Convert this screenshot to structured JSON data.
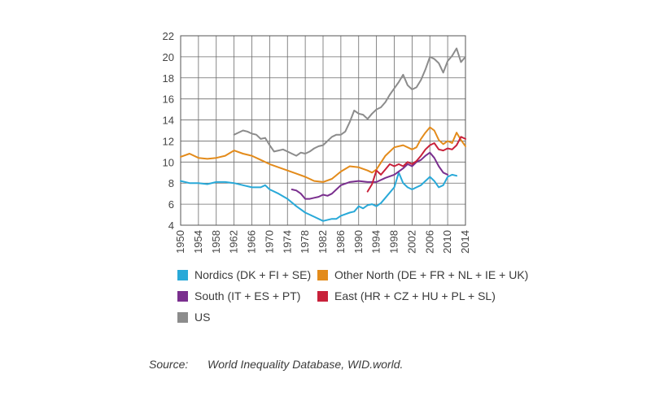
{
  "chart_data": {
    "type": "line",
    "title": "",
    "xlabel": "",
    "ylabel": "",
    "xlim": [
      1950,
      2014
    ],
    "ylim": [
      4,
      22
    ],
    "y_ticks": [
      4,
      6,
      8,
      10,
      12,
      14,
      16,
      18,
      20,
      22
    ],
    "x_ticks": [
      1950,
      1954,
      1958,
      1962,
      1966,
      1970,
      1974,
      1978,
      1982,
      1986,
      1990,
      1994,
      1998,
      2002,
      2006,
      2010,
      2014
    ],
    "grid": true,
    "series": [
      {
        "name": "Nordics (DK + FI + SE)",
        "color": "#29a9d8",
        "x": [
          1950,
          1952,
          1954,
          1956,
          1958,
          1960,
          1962,
          1964,
          1966,
          1968,
          1969,
          1970,
          1972,
          1974,
          1976,
          1978,
          1980,
          1982,
          1984,
          1985,
          1986,
          1988,
          1989,
          1990,
          1991,
          1992,
          1993,
          1994,
          1995,
          1996,
          1998,
          1999,
          2000,
          2001,
          2002,
          2003,
          2004,
          2005,
          2006,
          2007,
          2008,
          2009,
          2010,
          2011,
          2012
        ],
        "values": [
          8.2,
          8.0,
          8.0,
          7.9,
          8.1,
          8.1,
          8.0,
          7.8,
          7.6,
          7.6,
          7.8,
          7.4,
          7.0,
          6.5,
          5.8,
          5.2,
          4.8,
          4.4,
          4.6,
          4.6,
          4.9,
          5.2,
          5.3,
          5.8,
          5.6,
          5.9,
          6.0,
          5.8,
          6.1,
          6.6,
          7.6,
          9.0,
          8.0,
          7.6,
          7.4,
          7.6,
          7.8,
          8.2,
          8.6,
          8.2,
          7.6,
          7.8,
          8.6,
          8.8,
          8.7
        ]
      },
      {
        "name": "Other North (DE + FR + NL + IE + UK)",
        "color": "#e38b1b",
        "x": [
          1950,
          1952,
          1954,
          1956,
          1958,
          1960,
          1962,
          1964,
          1966,
          1968,
          1970,
          1972,
          1974,
          1976,
          1978,
          1980,
          1982,
          1984,
          1986,
          1988,
          1990,
          1992,
          1993,
          1994,
          1996,
          1998,
          2000,
          2002,
          2003,
          2004,
          2005,
          2006,
          2007,
          2008,
          2009,
          2010,
          2011,
          2012,
          2013,
          2014
        ],
        "values": [
          10.5,
          10.8,
          10.4,
          10.3,
          10.4,
          10.6,
          11.1,
          10.8,
          10.6,
          10.2,
          9.8,
          9.5,
          9.2,
          8.9,
          8.6,
          8.2,
          8.1,
          8.4,
          9.1,
          9.6,
          9.5,
          9.2,
          9.0,
          9.3,
          10.6,
          11.4,
          11.6,
          11.2,
          11.4,
          12.2,
          12.8,
          13.3,
          13.0,
          12.1,
          11.7,
          12.0,
          11.8,
          12.8,
          12.1,
          11.5
        ]
      },
      {
        "name": "South (IT + ES + PT)",
        "color": "#7a2f8e",
        "x": [
          1975,
          1976,
          1977,
          1978,
          1979,
          1980,
          1981,
          1982,
          1983,
          1984,
          1985,
          1986,
          1988,
          1990,
          1992,
          1994,
          1996,
          1998,
          2000,
          2001,
          2002,
          2003,
          2004,
          2005,
          2006,
          2007,
          2008,
          2009,
          2010
        ],
        "values": [
          7.4,
          7.3,
          7.0,
          6.5,
          6.5,
          6.6,
          6.7,
          6.9,
          6.8,
          7.0,
          7.4,
          7.8,
          8.1,
          8.2,
          8.1,
          8.1,
          8.5,
          8.8,
          9.4,
          9.8,
          9.6,
          10.0,
          10.2,
          10.6,
          10.9,
          10.4,
          9.6,
          9.0,
          8.8
        ]
      },
      {
        "name": "East (HR + CZ + HU + PL + SL)",
        "color": "#c8213a",
        "x": [
          1992,
          1993,
          1994,
          1995,
          1996,
          1997,
          1998,
          1999,
          2000,
          2001,
          2002,
          2003,
          2004,
          2005,
          2006,
          2007,
          2008,
          2009,
          2010,
          2011,
          2012,
          2013,
          2014
        ],
        "values": [
          7.2,
          7.9,
          9.2,
          8.8,
          9.3,
          9.8,
          9.6,
          9.8,
          9.6,
          10.0,
          9.8,
          10.1,
          10.6,
          11.2,
          11.6,
          11.8,
          11.2,
          11.1,
          11.3,
          11.2,
          11.6,
          12.4,
          12.2
        ]
      },
      {
        "name": "US",
        "color": "#8c8c8c",
        "x": [
          1962,
          1963,
          1964,
          1965,
          1966,
          1967,
          1968,
          1969,
          1970,
          1971,
          1972,
          1973,
          1974,
          1975,
          1976,
          1977,
          1978,
          1979,
          1980,
          1981,
          1982,
          1983,
          1984,
          1985,
          1986,
          1987,
          1988,
          1989,
          1990,
          1991,
          1992,
          1993,
          1994,
          1995,
          1996,
          1997,
          1998,
          1999,
          2000,
          2001,
          2002,
          2003,
          2004,
          2005,
          2006,
          2007,
          2008,
          2009,
          2010,
          2011,
          2012,
          2013,
          2014
        ],
        "values": [
          12.6,
          12.8,
          13.0,
          12.9,
          12.7,
          12.6,
          12.2,
          12.3,
          11.6,
          11.0,
          11.1,
          11.2,
          11.0,
          10.8,
          10.6,
          10.9,
          10.8,
          11.0,
          11.3,
          11.5,
          11.6,
          12.0,
          12.4,
          12.6,
          12.6,
          12.9,
          13.8,
          14.9,
          14.6,
          14.5,
          14.1,
          14.6,
          15.0,
          15.2,
          15.7,
          16.4,
          17.0,
          17.6,
          18.3,
          17.3,
          16.9,
          17.1,
          17.8,
          18.8,
          20.0,
          19.8,
          19.4,
          18.5,
          19.6,
          20.1,
          20.8,
          19.5,
          20.0
        ]
      }
    ]
  },
  "legend": {
    "nordics": {
      "label": "Nordics (DK + FI + SE)",
      "color": "#29a9d8"
    },
    "other_north": {
      "label": "Other North (DE + FR + NL + IE + UK)",
      "color": "#e38b1b"
    },
    "south": {
      "label": "South (IT + ES + PT)",
      "color": "#7a2f8e"
    },
    "east": {
      "label": "East (HR + CZ + HU + PL + SL)",
      "color": "#c8213a"
    },
    "us": {
      "label": "US",
      "color": "#8c8c8c"
    }
  },
  "source": {
    "label": "Source:",
    "text": "World Inequality Database, WID.world."
  }
}
